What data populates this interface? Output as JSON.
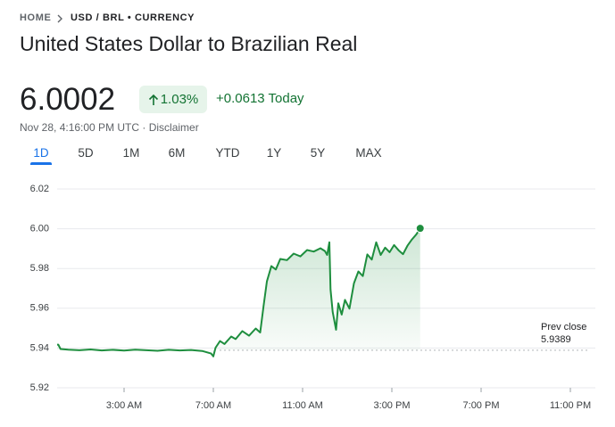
{
  "breadcrumb": {
    "home": "HOME",
    "current": "USD / BRL • CURRENCY"
  },
  "header": {
    "title": "United States Dollar to Brazilian Real",
    "price": "6.0002",
    "change_percent": "1.03%",
    "change": "+0.0613 Today",
    "timestamp": "Nov 28, 4:16:00 PM UTC · Disclaimer"
  },
  "tabs": [
    "1D",
    "5D",
    "1M",
    "6M",
    "YTD",
    "1Y",
    "5Y",
    "MAX"
  ],
  "chart_data": {
    "type": "line",
    "color": "#1e8e3e",
    "x": [
      0,
      0.05,
      0.15,
      0.5,
      1,
      1.5,
      2,
      2.5,
      3,
      3.5,
      4,
      4.5,
      5,
      5.5,
      6,
      6.5,
      6.9,
      7.0,
      7.1,
      7.3,
      7.5,
      7.8,
      8,
      8.3,
      8.6,
      8.9,
      9.1,
      9.25,
      9.4,
      9.6,
      9.8,
      10,
      10.3,
      10.6,
      10.9,
      11.2,
      11.5,
      11.8,
      12,
      12.1,
      12.2,
      12.25,
      12.35,
      12.5,
      12.6,
      12.75,
      12.9,
      13.1,
      13.3,
      13.5,
      13.7,
      13.9,
      14.1,
      14.3,
      14.5,
      14.7,
      14.9,
      15.1,
      15.3,
      15.5,
      15.7,
      15.9,
      16.1,
      16.27
    ],
    "values": [
      5.9417,
      5.9417,
      5.9395,
      5.9392,
      5.9389,
      5.9393,
      5.9388,
      5.9391,
      5.9387,
      5.9392,
      5.9389,
      5.9386,
      5.9391,
      5.9388,
      5.939,
      5.9385,
      5.9372,
      5.9358,
      5.9402,
      5.9435,
      5.942,
      5.9458,
      5.9445,
      5.9485,
      5.9462,
      5.9498,
      5.9478,
      5.9612,
      5.9735,
      5.9812,
      5.9795,
      5.9848,
      5.9842,
      5.9875,
      5.9861,
      5.9893,
      5.9885,
      5.9902,
      5.9888,
      5.9868,
      5.9932,
      5.9695,
      5.9582,
      5.9492,
      5.9625,
      5.9568,
      5.9642,
      5.9598,
      5.9725,
      5.9785,
      5.9762,
      5.9871,
      5.9845,
      5.9932,
      5.9868,
      5.9905,
      5.9882,
      5.9918,
      5.9892,
      5.9872,
      5.9915,
      5.9946,
      5.9972,
      6.0002
    ],
    "xlim": [
      0,
      24
    ],
    "xticks": [
      {
        "value": 3,
        "label": "3:00 AM"
      },
      {
        "value": 7,
        "label": "7:00 AM"
      },
      {
        "value": 11,
        "label": "11:00 AM"
      },
      {
        "value": 15,
        "label": "3:00 PM"
      },
      {
        "value": 19,
        "label": "7:00 PM"
      },
      {
        "value": 23,
        "label": "11:00 PM"
      }
    ],
    "ylim": [
      5.92,
      6.02
    ],
    "yticks": [
      5.92,
      5.94,
      5.96,
      5.98,
      {
        "value": 6,
        "label": "6.00"
      },
      6.02
    ],
    "grid": true,
    "annotations": [
      {
        "label": "Prev close",
        "value": 5.9389
      }
    ]
  }
}
